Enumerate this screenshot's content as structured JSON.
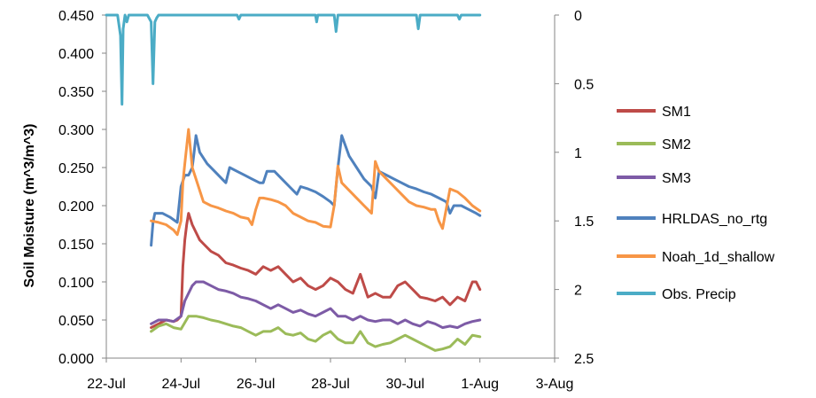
{
  "chart_data": {
    "type": "line",
    "title": "",
    "xlabel": "",
    "ylabel": "Soil Moisture (m^3/m^3)",
    "y2label": "",
    "xlim": [
      22,
      34
    ],
    "ylim": [
      0,
      0.45
    ],
    "y2lim": [
      0,
      2.5
    ],
    "y2_reversed": true,
    "grid": false,
    "legend_position": "right",
    "x_ticks": [
      {
        "x": 22,
        "label": "22-Jul"
      },
      {
        "x": 24,
        "label": "24-Jul"
      },
      {
        "x": 26,
        "label": "26-Jul"
      },
      {
        "x": 28,
        "label": "28-Jul"
      },
      {
        "x": 30,
        "label": "30-Jul"
      },
      {
        "x": 32,
        "label": "1-Aug"
      },
      {
        "x": 34,
        "label": "3-Aug"
      }
    ],
    "y_ticks": [
      "0.000",
      "0.050",
      "0.100",
      "0.150",
      "0.200",
      "0.250",
      "0.300",
      "0.350",
      "0.400",
      "0.450"
    ],
    "y_tick_values": [
      0,
      0.05,
      0.1,
      0.15,
      0.2,
      0.25,
      0.3,
      0.35,
      0.4,
      0.45
    ],
    "y2_ticks": [
      "0",
      "0.5",
      "1",
      "1.5",
      "2",
      "2.5"
    ],
    "y2_tick_values": [
      0,
      0.5,
      1,
      1.5,
      2,
      2.5
    ],
    "series": [
      {
        "name": "SM1",
        "color": "#be4b48",
        "axis": "left",
        "x": [
          23.2,
          23.4,
          23.6,
          23.8,
          23.9,
          24.0,
          24.05,
          24.1,
          24.15,
          24.2,
          24.3,
          24.4,
          24.5,
          24.6,
          24.8,
          25.0,
          25.2,
          25.4,
          25.6,
          25.8,
          26.0,
          26.2,
          26.4,
          26.6,
          26.8,
          27.0,
          27.2,
          27.4,
          27.6,
          27.8,
          28.0,
          28.2,
          28.4,
          28.6,
          28.8,
          29.0,
          29.2,
          29.4,
          29.6,
          29.8,
          30.0,
          30.2,
          30.4,
          30.6,
          30.8,
          31.0,
          31.2,
          31.4,
          31.6,
          31.8,
          31.9,
          32.0
        ],
        "y": [
          0.04,
          0.045,
          0.05,
          0.048,
          0.05,
          0.055,
          0.12,
          0.155,
          0.175,
          0.19,
          0.175,
          0.165,
          0.155,
          0.15,
          0.14,
          0.135,
          0.125,
          0.122,
          0.118,
          0.115,
          0.11,
          0.12,
          0.115,
          0.12,
          0.11,
          0.1,
          0.105,
          0.095,
          0.09,
          0.095,
          0.105,
          0.1,
          0.09,
          0.085,
          0.11,
          0.08,
          0.085,
          0.08,
          0.08,
          0.095,
          0.1,
          0.09,
          0.08,
          0.078,
          0.075,
          0.08,
          0.07,
          0.08,
          0.075,
          0.1,
          0.1,
          0.09
        ]
      },
      {
        "name": "SM2",
        "color": "#9bbb59",
        "axis": "left",
        "x": [
          23.2,
          23.4,
          23.6,
          23.8,
          24.0,
          24.2,
          24.4,
          24.6,
          24.8,
          25.0,
          25.2,
          25.4,
          25.6,
          25.8,
          26.0,
          26.2,
          26.4,
          26.6,
          26.8,
          27.0,
          27.2,
          27.4,
          27.6,
          27.8,
          28.0,
          28.2,
          28.4,
          28.6,
          28.8,
          29.0,
          29.2,
          29.4,
          29.6,
          29.8,
          30.0,
          30.2,
          30.4,
          30.6,
          30.8,
          31.0,
          31.2,
          31.4,
          31.6,
          31.8,
          32.0
        ],
        "y": [
          0.035,
          0.042,
          0.045,
          0.04,
          0.038,
          0.055,
          0.055,
          0.053,
          0.05,
          0.048,
          0.045,
          0.042,
          0.04,
          0.035,
          0.03,
          0.035,
          0.035,
          0.04,
          0.032,
          0.03,
          0.033,
          0.025,
          0.022,
          0.03,
          0.035,
          0.025,
          0.02,
          0.02,
          0.035,
          0.02,
          0.015,
          0.018,
          0.02,
          0.025,
          0.03,
          0.025,
          0.02,
          0.015,
          0.01,
          0.012,
          0.015,
          0.025,
          0.018,
          0.03,
          0.028
        ]
      },
      {
        "name": "SM3",
        "color": "#7d5ba6",
        "axis": "left",
        "x": [
          23.2,
          23.4,
          23.6,
          23.8,
          24.0,
          24.1,
          24.2,
          24.3,
          24.4,
          24.6,
          24.8,
          25.0,
          25.2,
          25.4,
          25.6,
          25.8,
          26.0,
          26.2,
          26.4,
          26.6,
          26.8,
          27.0,
          27.2,
          27.4,
          27.6,
          27.8,
          28.0,
          28.2,
          28.4,
          28.6,
          28.8,
          29.0,
          29.2,
          29.4,
          29.6,
          29.8,
          30.0,
          30.2,
          30.4,
          30.6,
          30.8,
          31.0,
          31.2,
          31.4,
          31.6,
          31.8,
          32.0
        ],
        "y": [
          0.045,
          0.05,
          0.05,
          0.048,
          0.055,
          0.075,
          0.085,
          0.095,
          0.1,
          0.1,
          0.095,
          0.09,
          0.088,
          0.085,
          0.08,
          0.078,
          0.075,
          0.07,
          0.065,
          0.07,
          0.065,
          0.06,
          0.063,
          0.058,
          0.055,
          0.06,
          0.065,
          0.055,
          0.055,
          0.05,
          0.055,
          0.05,
          0.048,
          0.05,
          0.05,
          0.045,
          0.05,
          0.045,
          0.042,
          0.048,
          0.045,
          0.04,
          0.042,
          0.04,
          0.045,
          0.048,
          0.05
        ]
      },
      {
        "name": "HRLDAS_no_rtg",
        "color": "#4f81bd",
        "axis": "left",
        "x": [
          23.2,
          23.25,
          23.3,
          23.5,
          23.7,
          23.9,
          24.0,
          24.1,
          24.2,
          24.3,
          24.35,
          24.4,
          24.5,
          24.7,
          24.9,
          25.1,
          25.2,
          25.3,
          25.5,
          25.7,
          25.9,
          26.1,
          26.2,
          26.3,
          26.5,
          26.7,
          26.9,
          27.1,
          27.2,
          27.4,
          27.6,
          27.8,
          28.0,
          28.1,
          28.2,
          28.3,
          28.5,
          28.7,
          28.9,
          29.1,
          29.2,
          29.3,
          29.5,
          29.7,
          29.9,
          30.1,
          30.3,
          30.5,
          30.7,
          30.9,
          31.1,
          31.2,
          31.3,
          31.5,
          31.7,
          31.9,
          32.0
        ],
        "y": [
          0.148,
          0.178,
          0.19,
          0.19,
          0.185,
          0.178,
          0.225,
          0.24,
          0.24,
          0.25,
          0.27,
          0.292,
          0.27,
          0.255,
          0.245,
          0.235,
          0.23,
          0.25,
          0.245,
          0.24,
          0.235,
          0.23,
          0.23,
          0.245,
          0.245,
          0.235,
          0.225,
          0.215,
          0.225,
          0.222,
          0.218,
          0.212,
          0.205,
          0.2,
          0.25,
          0.292,
          0.265,
          0.25,
          0.235,
          0.225,
          0.21,
          0.245,
          0.24,
          0.235,
          0.23,
          0.225,
          0.222,
          0.218,
          0.215,
          0.21,
          0.205,
          0.19,
          0.2,
          0.2,
          0.195,
          0.19,
          0.187
        ]
      },
      {
        "name": "Noah_1d_shallow",
        "color": "#f79646",
        "axis": "left",
        "x": [
          23.2,
          23.4,
          23.6,
          23.8,
          23.9,
          24.0,
          24.05,
          24.1,
          24.2,
          24.3,
          24.4,
          24.5,
          24.6,
          24.8,
          25.0,
          25.2,
          25.4,
          25.6,
          25.8,
          25.9,
          26.0,
          26.1,
          26.2,
          26.4,
          26.6,
          26.8,
          27.0,
          27.2,
          27.4,
          27.6,
          27.8,
          28.0,
          28.1,
          28.2,
          28.3,
          28.5,
          28.7,
          28.9,
          29.0,
          29.1,
          29.2,
          29.3,
          29.5,
          29.7,
          29.9,
          30.1,
          30.3,
          30.5,
          30.7,
          30.8,
          30.9,
          31.0,
          31.2,
          31.4,
          31.6,
          31.8,
          32.0
        ],
        "y": [
          0.18,
          0.178,
          0.175,
          0.168,
          0.162,
          0.18,
          0.23,
          0.255,
          0.3,
          0.25,
          0.235,
          0.22,
          0.205,
          0.2,
          0.197,
          0.193,
          0.19,
          0.185,
          0.183,
          0.175,
          0.195,
          0.21,
          0.21,
          0.208,
          0.205,
          0.2,
          0.19,
          0.185,
          0.18,
          0.178,
          0.173,
          0.172,
          0.2,
          0.252,
          0.23,
          0.22,
          0.21,
          0.2,
          0.195,
          0.19,
          0.258,
          0.245,
          0.235,
          0.225,
          0.215,
          0.205,
          0.2,
          0.198,
          0.195,
          0.195,
          0.18,
          0.17,
          0.222,
          0.218,
          0.21,
          0.2,
          0.193
        ]
      },
      {
        "name": "Obs. Precip",
        "color": "#4bacc6",
        "axis": "right",
        "x": [
          22.0,
          22.3,
          22.38,
          22.42,
          22.45,
          22.5,
          22.55,
          22.6,
          23.1,
          23.2,
          23.25,
          23.3,
          23.35,
          23.4,
          25.5,
          25.55,
          25.6,
          27.6,
          27.63,
          27.66,
          28.1,
          28.15,
          28.2,
          28.8,
          30.3,
          30.35,
          30.4,
          31.4,
          31.45,
          31.5,
          32.0
        ],
        "y": [
          0,
          0,
          0.15,
          0.65,
          0.1,
          0,
          0.05,
          0,
          0,
          0.05,
          0.5,
          0.05,
          0.02,
          0,
          0,
          0.03,
          0,
          0,
          0.05,
          0,
          0,
          0.12,
          0,
          0,
          0,
          0.1,
          0,
          0,
          0.03,
          0,
          0
        ]
      }
    ]
  }
}
